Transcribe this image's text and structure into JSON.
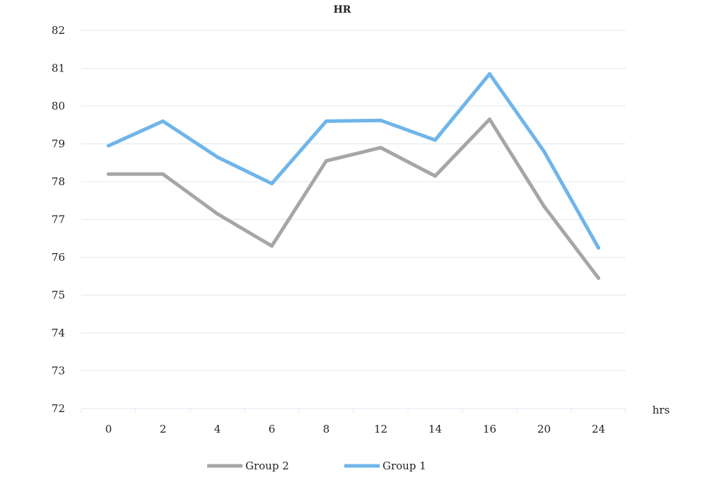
{
  "chart_data": {
    "type": "line",
    "title": "HR",
    "xlabel": "hrs",
    "ylabel": "",
    "categories": [
      "0",
      "2",
      "4",
      "6",
      "8",
      "12",
      "14",
      "16",
      "20",
      "24"
    ],
    "ylim": [
      72,
      82
    ],
    "yticks": [
      72,
      73,
      74,
      75,
      76,
      77,
      78,
      79,
      80,
      81,
      82
    ],
    "grid": true,
    "legend_position": "bottom",
    "series": [
      {
        "name": "Group 2",
        "color": "#a6a6a6",
        "values": [
          78.2,
          78.2,
          77.15,
          76.3,
          78.55,
          78.9,
          78.15,
          79.65,
          77.35,
          75.45
        ]
      },
      {
        "name": "Group 1",
        "color": "#6fb5ea",
        "values": [
          78.95,
          79.6,
          78.65,
          77.95,
          79.6,
          79.62,
          79.1,
          80.85,
          78.8,
          76.25
        ]
      }
    ]
  }
}
